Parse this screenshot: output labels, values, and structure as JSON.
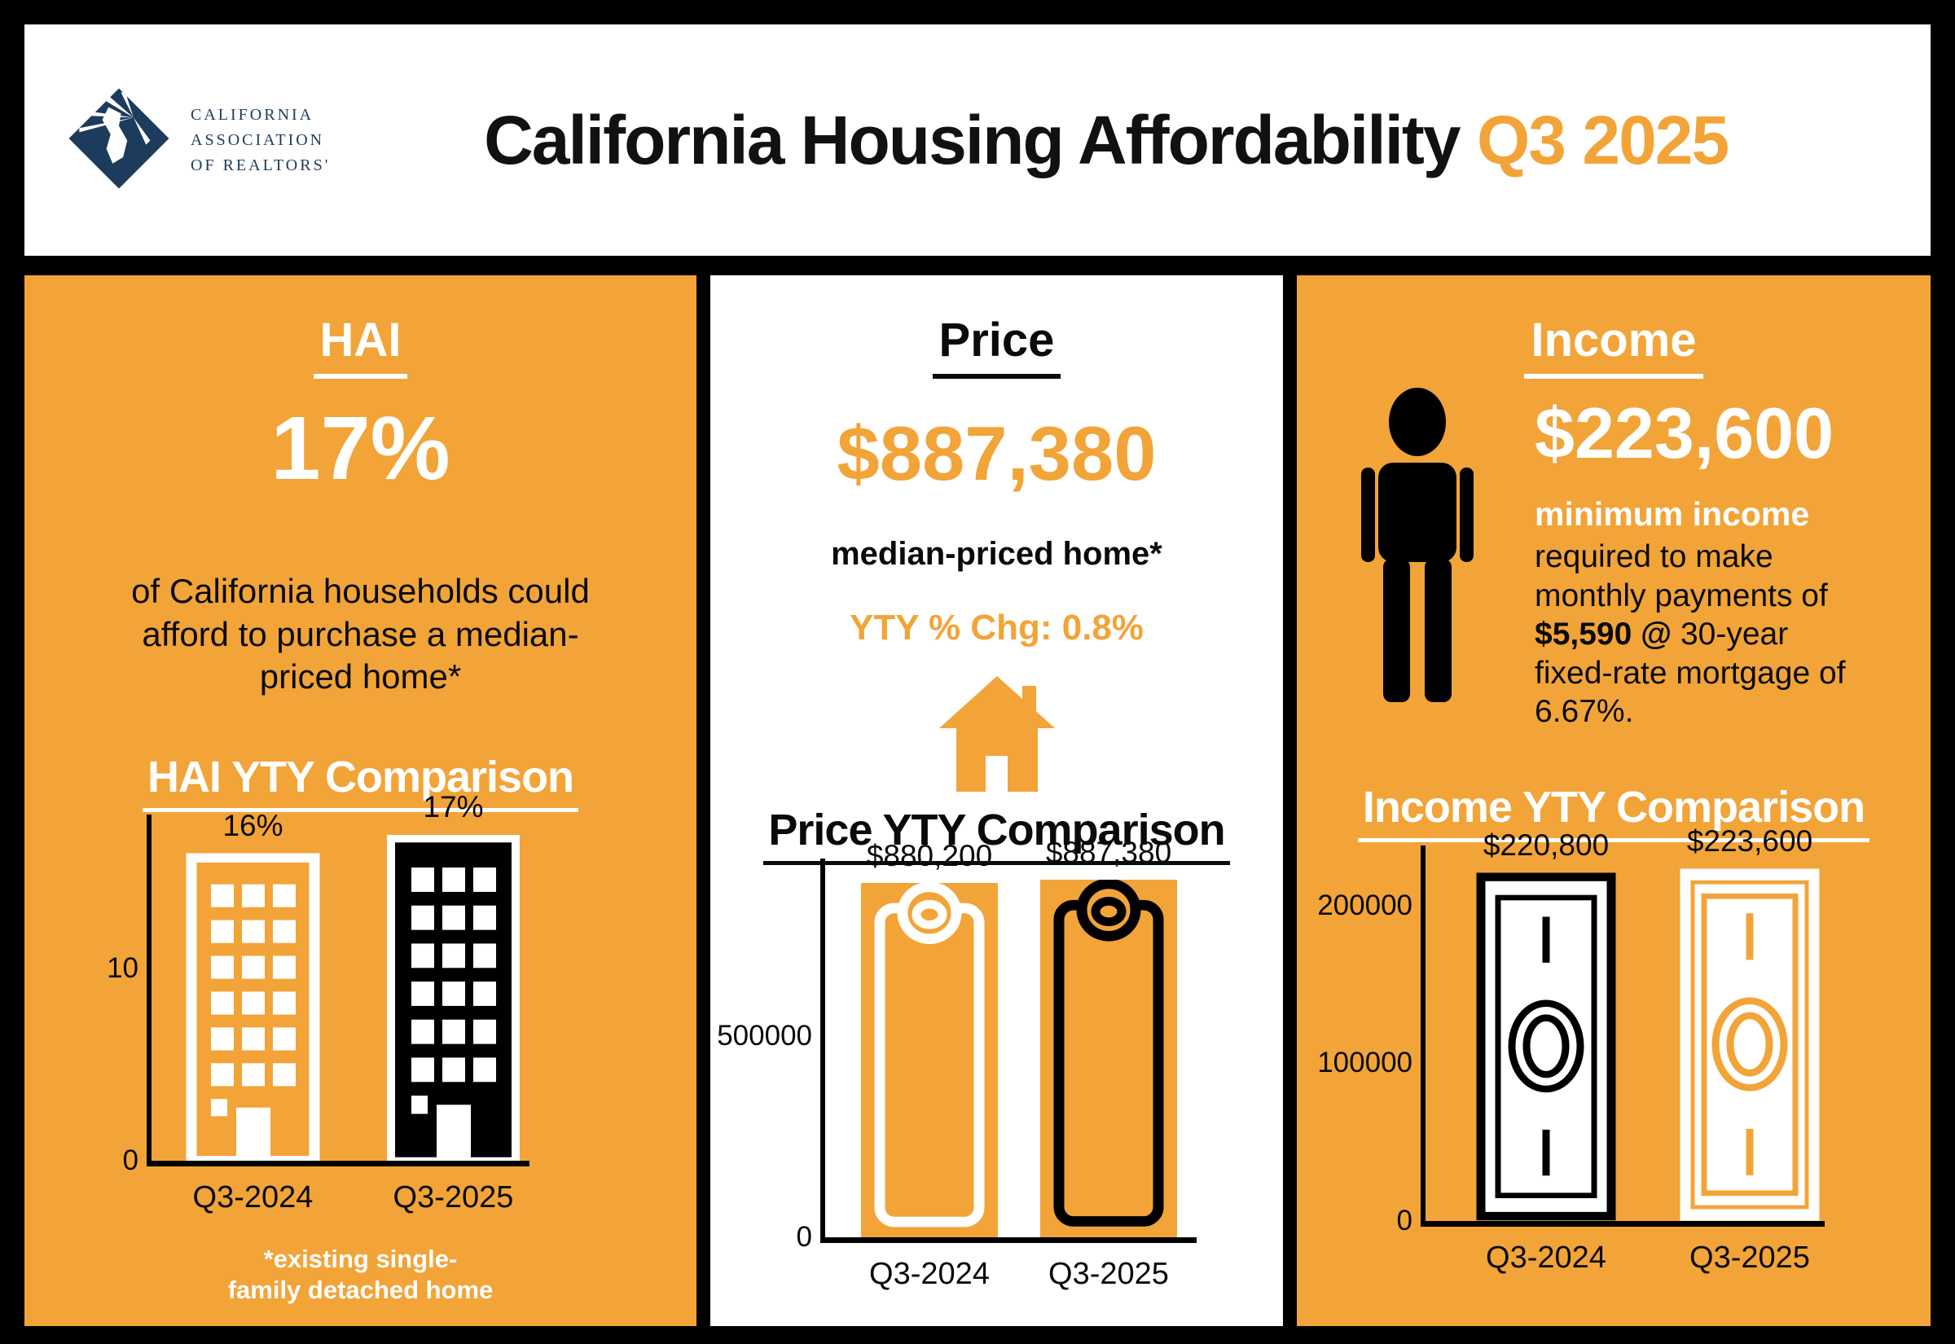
{
  "colors": {
    "accent": "#F2A438",
    "navy": "#1D3B5C",
    "black": "#000000",
    "white": "#FFFFFF"
  },
  "header": {
    "logo_lines": [
      "CALIFORNIA",
      "ASSOCIATION",
      "OF REALTORS'"
    ],
    "title": "California Housing Affordability",
    "title_accent": "Q3 2025"
  },
  "hai_panel": {
    "heading": "HAI",
    "big_value": "17%",
    "description": "of California households could afford to purchase a median-priced home*",
    "footnote": "*existing single-\nfamily detached home"
  },
  "price_panel": {
    "heading": "Price",
    "big_value": "$887,380",
    "caption": "median-priced home*",
    "yty_change": "YTY % Chg: 0.8%"
  },
  "income_panel": {
    "heading": "Income",
    "big_value": "$223,600",
    "desc_highlight": "minimum income",
    "desc_pre": "required to make monthly payments of ",
    "desc_bold": "$5,590 @",
    "desc_post": " 30-year fixed-rate mortgage of 6.67%."
  },
  "chart_data": [
    {
      "id": "hai-yty",
      "type": "bar",
      "title": "HAI YTY Comparison",
      "categories": [
        "Q3-2024",
        "Q3-2025"
      ],
      "values": [
        16,
        17
      ],
      "value_labels": [
        "16%",
        "17%"
      ],
      "yticks": [
        0,
        10
      ],
      "ytick_labels": [
        "0",
        "10"
      ],
      "ylim": [
        0,
        18
      ],
      "grid": false,
      "legend": "none",
      "bar_icons": [
        "building-orange-outline",
        "building-black"
      ]
    },
    {
      "id": "price-yty",
      "type": "bar",
      "title": "Price YTY Comparison",
      "categories": [
        "Q3-2024",
        "Q3-2025"
      ],
      "values": [
        880200,
        887380
      ],
      "value_labels": [
        "$880,200",
        "$887,380"
      ],
      "yticks": [
        0,
        500000
      ],
      "ytick_labels": [
        "0",
        "500000"
      ],
      "ylim": [
        0,
        940000
      ],
      "grid": false,
      "legend": "none",
      "bar_icons": [
        "price-tag-white-outline",
        "price-tag-black-outline"
      ]
    },
    {
      "id": "income-yty",
      "type": "bar",
      "title": "Income YTY Comparison",
      "categories": [
        "Q3-2024",
        "Q3-2025"
      ],
      "values": [
        220800,
        223600
      ],
      "value_labels": [
        "$220,800",
        "$223,600"
      ],
      "yticks": [
        0,
        100000,
        200000
      ],
      "ytick_labels": [
        "0",
        "100000",
        "200000"
      ],
      "ylim": [
        0,
        238000
      ],
      "grid": false,
      "legend": "none",
      "bar_icons": [
        "dollar-bill-black",
        "dollar-bill-orange"
      ]
    }
  ]
}
